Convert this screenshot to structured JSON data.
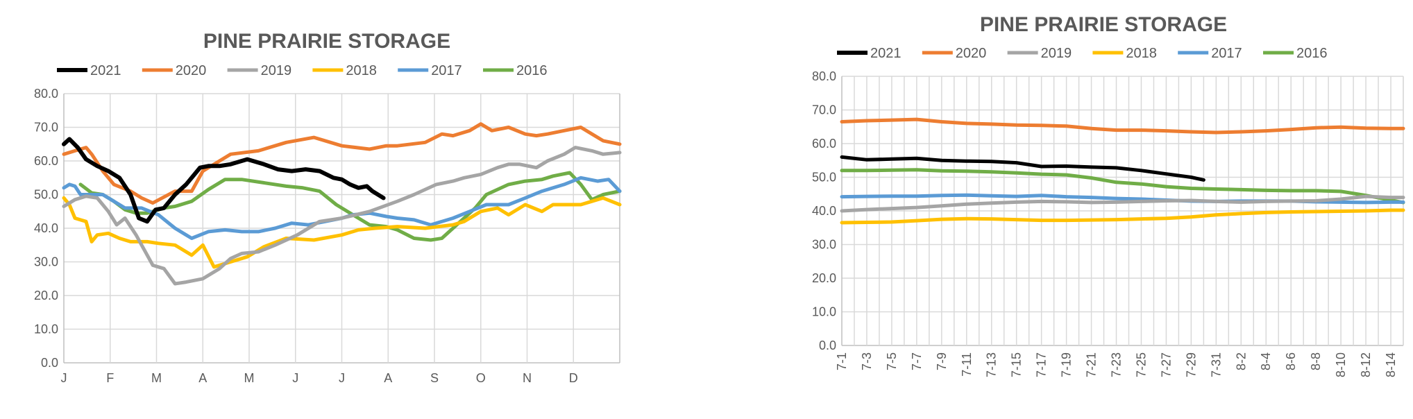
{
  "chart_data": [
    {
      "type": "line",
      "title": "PINE PRAIRIE STORAGE",
      "xlabel": "",
      "ylabel": "",
      "ylim": [
        0,
        80
      ],
      "ytick_labels": [
        "0.0",
        "10.0",
        "20.0",
        "30.0",
        "40.0",
        "50.0",
        "60.0",
        "70.0",
        "80.0"
      ],
      "xlim": [
        0,
        1
      ],
      "categories": [
        "J",
        "F",
        "M",
        "A",
        "M",
        "J",
        "J",
        "A",
        "S",
        "O",
        "N",
        "D"
      ],
      "legend": "top",
      "series": [
        {
          "name": "2021",
          "color": "#000000",
          "width": 6,
          "x": [
            0,
            0.01,
            0.025,
            0.04,
            0.06,
            0.08,
            0.1,
            0.12,
            0.135,
            0.15,
            0.165,
            0.18,
            0.2,
            0.22,
            0.245,
            0.26,
            0.28,
            0.3,
            0.33,
            0.36,
            0.385,
            0.41,
            0.435,
            0.46,
            0.485,
            0.5,
            0.515,
            0.53,
            0.545,
            0.555,
            0.575
          ],
          "y": [
            65,
            66.5,
            64,
            60.5,
            58.5,
            57,
            55,
            50,
            43,
            42,
            45.5,
            46,
            50,
            53,
            58,
            58.5,
            58.5,
            59,
            60.5,
            59,
            57.5,
            57,
            57.5,
            57,
            55,
            54.5,
            53,
            52,
            52.5,
            51,
            49
          ]
        },
        {
          "name": "2020",
          "color": "#ed7d31",
          "width": 5,
          "x": [
            0,
            0.02,
            0.04,
            0.05,
            0.07,
            0.09,
            0.12,
            0.14,
            0.16,
            0.2,
            0.23,
            0.25,
            0.28,
            0.3,
            0.35,
            0.4,
            0.45,
            0.5,
            0.55,
            0.58,
            0.6,
            0.65,
            0.68,
            0.7,
            0.73,
            0.75,
            0.77,
            0.8,
            0.83,
            0.85,
            0.87,
            0.9,
            0.93,
            0.95,
            0.97,
            1.0
          ],
          "y": [
            62,
            63,
            64,
            62,
            57,
            53,
            51,
            49,
            47.5,
            51,
            51,
            57,
            60,
            62,
            63,
            65.5,
            67,
            64.5,
            63.5,
            64.5,
            64.5,
            65.5,
            68,
            67.5,
            69,
            71,
            69,
            70,
            68,
            67.5,
            68,
            69,
            70,
            68,
            66,
            65
          ]
        },
        {
          "name": "2019",
          "color": "#a5a5a5",
          "width": 5,
          "x": [
            0,
            0.02,
            0.04,
            0.06,
            0.08,
            0.095,
            0.11,
            0.13,
            0.14,
            0.16,
            0.18,
            0.2,
            0.22,
            0.25,
            0.28,
            0.3,
            0.32,
            0.35,
            0.38,
            0.42,
            0.46,
            0.5,
            0.55,
            0.6,
            0.63,
            0.67,
            0.7,
            0.72,
            0.75,
            0.78,
            0.8,
            0.82,
            0.85,
            0.87,
            0.9,
            0.92,
            0.95,
            0.97,
            1.0
          ],
          "y": [
            46.5,
            48.5,
            49.5,
            49,
            45,
            41,
            43,
            38,
            35,
            29,
            28,
            23.5,
            24,
            25,
            28,
            31,
            32.5,
            33,
            35,
            38,
            42,
            43,
            45,
            48,
            50,
            53,
            54,
            55,
            56,
            58,
            59,
            59,
            58,
            60,
            62,
            64,
            63,
            62,
            62.5
          ]
        },
        {
          "name": "2018",
          "color": "#ffc000",
          "width": 5,
          "x": [
            0,
            0.01,
            0.02,
            0.04,
            0.05,
            0.06,
            0.08,
            0.1,
            0.12,
            0.15,
            0.17,
            0.2,
            0.23,
            0.25,
            0.27,
            0.3,
            0.33,
            0.36,
            0.4,
            0.45,
            0.5,
            0.53,
            0.56,
            0.6,
            0.65,
            0.7,
            0.72,
            0.75,
            0.78,
            0.8,
            0.83,
            0.86,
            0.88,
            0.9,
            0.93,
            0.95,
            0.97,
            1.0
          ],
          "y": [
            49,
            47,
            43,
            42,
            36,
            38,
            38.5,
            37,
            36,
            36,
            35.5,
            35,
            32,
            35,
            28.5,
            30,
            31.5,
            34.5,
            37,
            36.5,
            38,
            39.5,
            40,
            40.5,
            40,
            41,
            42,
            45,
            46,
            44,
            47,
            45,
            47,
            47,
            47,
            48,
            49,
            47
          ]
        },
        {
          "name": "2017",
          "color": "#5b9bd5",
          "width": 5,
          "x": [
            0,
            0.01,
            0.02,
            0.03,
            0.05,
            0.07,
            0.09,
            0.11,
            0.14,
            0.17,
            0.2,
            0.22,
            0.23,
            0.26,
            0.29,
            0.32,
            0.35,
            0.38,
            0.41,
            0.44,
            0.47,
            0.5,
            0.52,
            0.55,
            0.58,
            0.6,
            0.63,
            0.66,
            0.7,
            0.73,
            0.76,
            0.8,
            0.83,
            0.86,
            0.9,
            0.93,
            0.96,
            0.98,
            1.0
          ],
          "y": [
            52,
            53,
            52.5,
            50,
            50,
            50,
            48,
            46,
            46,
            44,
            40,
            38,
            37,
            39,
            39.5,
            39,
            39,
            40,
            41.5,
            41,
            42,
            43,
            44,
            44.5,
            43.5,
            43,
            42.5,
            41,
            43,
            45,
            47,
            47,
            49,
            51,
            53,
            55,
            54,
            54.5,
            51
          ]
        },
        {
          "name": "2016",
          "color": "#70ad47",
          "width": 5,
          "x": [
            0.03,
            0.05,
            0.07,
            0.09,
            0.11,
            0.13,
            0.15,
            0.18,
            0.2,
            0.23,
            0.26,
            0.29,
            0.32,
            0.36,
            0.4,
            0.43,
            0.46,
            0.49,
            0.52,
            0.55,
            0.58,
            0.6,
            0.63,
            0.66,
            0.68,
            0.7,
            0.72,
            0.74,
            0.76,
            0.8,
            0.83,
            0.86,
            0.88,
            0.91,
            0.93,
            0.95,
            0.97,
            1.0
          ],
          "y": [
            53,
            50.5,
            50,
            48,
            45.5,
            44.5,
            44.5,
            46,
            46.5,
            48,
            51.5,
            54.5,
            54.5,
            53.5,
            52.5,
            52,
            51,
            47,
            44,
            41,
            40.5,
            39.5,
            37,
            36.5,
            37,
            40,
            43,
            46,
            50,
            53,
            54,
            54.5,
            55.5,
            56.5,
            53,
            48.5,
            50,
            51
          ]
        }
      ]
    },
    {
      "type": "line",
      "title": "PINE PRAIRIE STORAGE",
      "xlabel": "",
      "ylabel": "",
      "ylim": [
        0,
        80
      ],
      "ytick_labels": [
        "0.0",
        "10.0",
        "20.0",
        "30.0",
        "40.0",
        "50.0",
        "60.0",
        "70.0",
        "80.0"
      ],
      "categories": [
        "7-1",
        "7-3",
        "7-5",
        "7-7",
        "7-9",
        "7-11",
        "7-13",
        "7-15",
        "7-17",
        "7-19",
        "7-21",
        "7-23",
        "7-25",
        "7-27",
        "7-29",
        "7-31",
        "8-2",
        "8-4",
        "8-6",
        "8-8",
        "8-10",
        "8-12",
        "8-14"
      ],
      "xlim": [
        0,
        45
      ],
      "legend": "top",
      "series": [
        {
          "name": "2021",
          "color": "#000000",
          "width": 5,
          "x": [
            0,
            2,
            4,
            6,
            8,
            10,
            12,
            14,
            16,
            18,
            20,
            22,
            24,
            26,
            28,
            29
          ],
          "y": [
            56,
            55.2,
            55.4,
            55.6,
            55,
            54.8,
            54.7,
            54.3,
            53.2,
            53.3,
            53,
            52.8,
            52,
            51,
            50,
            49.2
          ]
        },
        {
          "name": "2020",
          "color": "#ed7d31",
          "width": 5,
          "x": [
            0,
            2,
            4,
            6,
            8,
            10,
            12,
            14,
            16,
            18,
            20,
            22,
            24,
            26,
            28,
            30,
            32,
            34,
            36,
            38,
            40,
            42,
            44,
            45
          ],
          "y": [
            66.5,
            66.8,
            67,
            67.2,
            66.5,
            66,
            65.8,
            65.5,
            65.4,
            65.2,
            64.5,
            64,
            64,
            63.8,
            63.5,
            63.3,
            63.5,
            63.8,
            64.2,
            64.7,
            64.9,
            64.6,
            64.5,
            64.5
          ]
        },
        {
          "name": "2019",
          "color": "#a5a5a5",
          "width": 5,
          "x": [
            0,
            2,
            4,
            6,
            8,
            10,
            12,
            14,
            16,
            18,
            20,
            22,
            24,
            26,
            28,
            30,
            32,
            34,
            36,
            38,
            40,
            42,
            44,
            45
          ],
          "y": [
            40,
            40.4,
            40.7,
            41,
            41.5,
            42,
            42.3,
            42.6,
            42.8,
            42.7,
            42.5,
            42.6,
            42.8,
            43,
            43.1,
            42.8,
            42.6,
            42.8,
            42.9,
            43,
            43.5,
            44.3,
            44,
            44
          ]
        },
        {
          "name": "2018",
          "color": "#ffc000",
          "width": 5,
          "x": [
            0,
            2,
            4,
            6,
            8,
            10,
            12,
            14,
            16,
            18,
            20,
            22,
            24,
            26,
            28,
            30,
            32,
            34,
            36,
            38,
            40,
            42,
            44,
            45
          ],
          "y": [
            36.5,
            36.6,
            36.7,
            37.1,
            37.5,
            37.7,
            37.6,
            37.4,
            37.2,
            37.2,
            37.3,
            37.4,
            37.6,
            37.8,
            38.2,
            38.8,
            39.2,
            39.5,
            39.7,
            39.8,
            39.9,
            40,
            40.2,
            40.2
          ]
        },
        {
          "name": "2017",
          "color": "#5b9bd5",
          "width": 5,
          "x": [
            0,
            2,
            4,
            6,
            8,
            10,
            12,
            14,
            16,
            18,
            20,
            22,
            24,
            26,
            28,
            30,
            32,
            34,
            36,
            38,
            40,
            42,
            44,
            45
          ],
          "y": [
            44.2,
            44.3,
            44.4,
            44.4,
            44.6,
            44.7,
            44.5,
            44.3,
            44.6,
            44.2,
            44,
            43.7,
            43.5,
            43.2,
            42.9,
            42.8,
            42.9,
            42.9,
            42.9,
            42.7,
            42.6,
            42.5,
            42.6,
            42.6
          ]
        },
        {
          "name": "2016",
          "color": "#70ad47",
          "width": 5,
          "x": [
            0,
            2,
            4,
            6,
            8,
            10,
            12,
            14,
            16,
            18,
            20,
            22,
            24,
            26,
            28,
            30,
            32,
            34,
            36,
            38,
            40,
            42,
            44,
            45
          ],
          "y": [
            52,
            52,
            52.1,
            52.2,
            51.9,
            51.8,
            51.6,
            51.3,
            50.9,
            50.7,
            49.8,
            48.5,
            48,
            47.2,
            46.7,
            46.5,
            46.3,
            46.1,
            46,
            46,
            45.8,
            44.6,
            43.2,
            42.5
          ]
        }
      ]
    }
  ]
}
